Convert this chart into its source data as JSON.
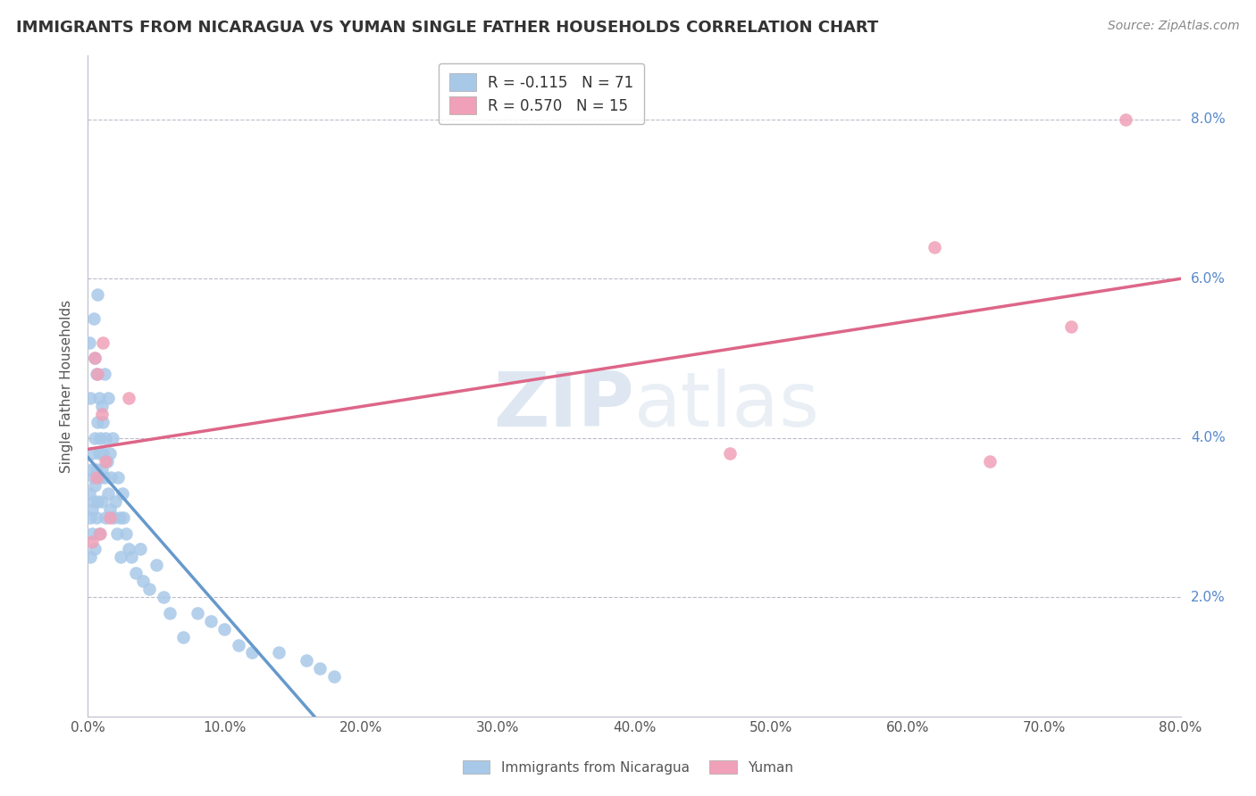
{
  "title": "IMMIGRANTS FROM NICARAGUA VS YUMAN SINGLE FATHER HOUSEHOLDS CORRELATION CHART",
  "source_text": "Source: ZipAtlas.com",
  "ylabel": "Single Father Households",
  "xlim": [
    0.0,
    0.8
  ],
  "ylim": [
    0.005,
    0.088
  ],
  "x_ticks": [
    0.0,
    0.1,
    0.2,
    0.3,
    0.4,
    0.5,
    0.6,
    0.7,
    0.8
  ],
  "y_ticks": [
    0.02,
    0.04,
    0.06,
    0.08
  ],
  "y_tick_labels": [
    "2.0%",
    "4.0%",
    "6.0%",
    "8.0%"
  ],
  "x_tick_labels": [
    "0.0%",
    "10.0%",
    "20.0%",
    "30.0%",
    "40.0%",
    "50.0%",
    "60.0%",
    "70.0%",
    "80.0%"
  ],
  "color_blue": "#A8C8E8",
  "color_blue_line": "#6699CC",
  "color_blue_line_dash": "#99BBDD",
  "color_pink": "#F0A0B8",
  "color_pink_line": "#DD6688",
  "watermark_color": "#C8D8E8",
  "legend_box_color": "#E8EEF4",
  "nicaragua_x": [
    0.001,
    0.001,
    0.002,
    0.002,
    0.002,
    0.003,
    0.003,
    0.003,
    0.003,
    0.004,
    0.004,
    0.004,
    0.005,
    0.005,
    0.005,
    0.005,
    0.006,
    0.006,
    0.006,
    0.007,
    0.007,
    0.007,
    0.008,
    0.008,
    0.008,
    0.009,
    0.009,
    0.01,
    0.01,
    0.01,
    0.011,
    0.011,
    0.012,
    0.012,
    0.013,
    0.013,
    0.014,
    0.015,
    0.015,
    0.016,
    0.016,
    0.017,
    0.018,
    0.019,
    0.02,
    0.021,
    0.022,
    0.023,
    0.024,
    0.025,
    0.026,
    0.028,
    0.03,
    0.032,
    0.035,
    0.038,
    0.04,
    0.045,
    0.05,
    0.055,
    0.06,
    0.07,
    0.08,
    0.09,
    0.1,
    0.11,
    0.12,
    0.14,
    0.16,
    0.17,
    0.18
  ],
  "nicaragua_y": [
    0.033,
    0.052,
    0.025,
    0.03,
    0.045,
    0.031,
    0.036,
    0.038,
    0.028,
    0.035,
    0.032,
    0.055,
    0.034,
    0.05,
    0.04,
    0.026,
    0.036,
    0.048,
    0.03,
    0.042,
    0.058,
    0.032,
    0.038,
    0.045,
    0.028,
    0.04,
    0.035,
    0.044,
    0.032,
    0.036,
    0.038,
    0.042,
    0.035,
    0.048,
    0.04,
    0.03,
    0.037,
    0.033,
    0.045,
    0.031,
    0.038,
    0.035,
    0.04,
    0.03,
    0.032,
    0.028,
    0.035,
    0.03,
    0.025,
    0.033,
    0.03,
    0.028,
    0.026,
    0.025,
    0.023,
    0.026,
    0.022,
    0.021,
    0.024,
    0.02,
    0.018,
    0.015,
    0.018,
    0.017,
    0.016,
    0.014,
    0.013,
    0.013,
    0.012,
    0.011,
    0.01
  ],
  "yuman_x": [
    0.003,
    0.005,
    0.006,
    0.007,
    0.009,
    0.01,
    0.011,
    0.013,
    0.016,
    0.03,
    0.47,
    0.62,
    0.66,
    0.72,
    0.76
  ],
  "yuman_y": [
    0.027,
    0.05,
    0.035,
    0.048,
    0.028,
    0.043,
    0.052,
    0.037,
    0.03,
    0.045,
    0.038,
    0.064,
    0.037,
    0.054,
    0.08
  ]
}
